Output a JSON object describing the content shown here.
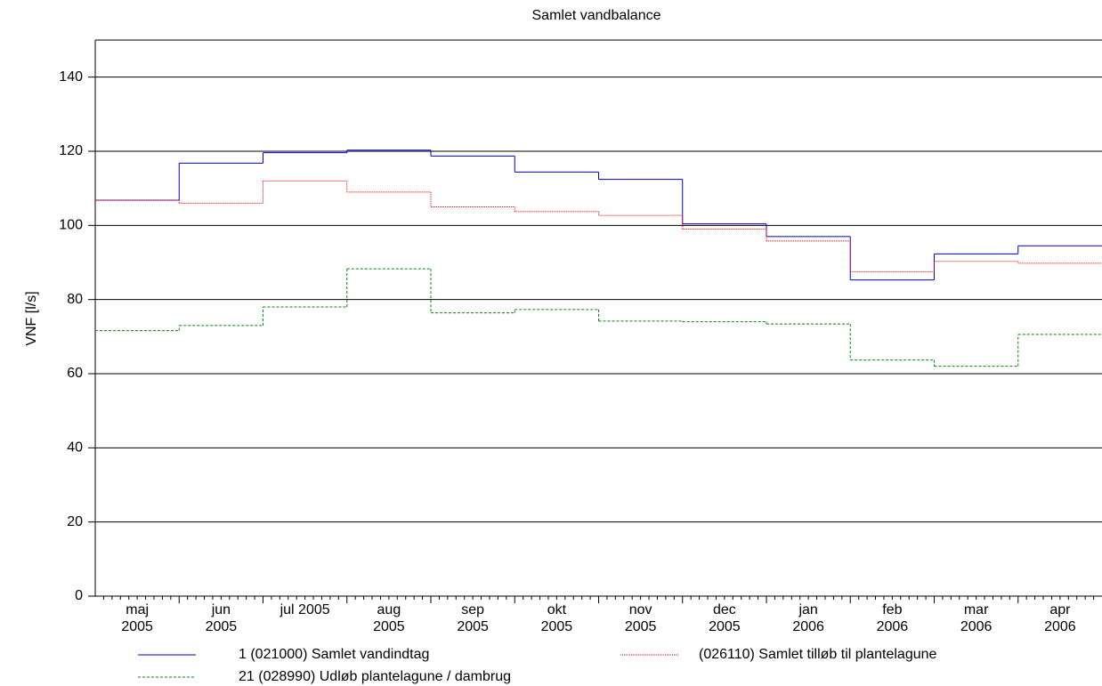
{
  "chart_data": {
    "type": "step-line",
    "title": "Samlet vandbalance",
    "y_label": "VNF [l/s]",
    "categories": [
      "maj 2005",
      "jun 2005",
      "jul 2005",
      "aug 2005",
      "sep 2005",
      "okt 2005",
      "nov 2005",
      "dec 2005",
      "jan 2006",
      "feb 2006",
      "mar 2006",
      "apr 2006"
    ],
    "series": [
      {
        "name": "1 (021000) Samlet vandindtag",
        "color": "#0000cc",
        "style": "solid",
        "values": [
          106.8,
          116.8,
          119.6,
          120.3,
          118.7,
          114.4,
          112.4,
          100.4,
          97,
          85.3,
          92.3,
          94.5
        ]
      },
      {
        "name": "(026110) Samlet tilløb til plantelagune",
        "color": "#ff0000",
        "style": "dotted",
        "values": [
          106.8,
          106,
          112,
          109,
          105,
          103.7,
          102.7,
          99,
          95.8,
          87.5,
          90.3,
          89.8
        ]
      },
      {
        "name": "21 (028990) Udløb plantelagune / dambrug",
        "color": "#008800",
        "style": "dashed",
        "values": [
          71.6,
          73,
          78,
          88.3,
          76.4,
          77.3,
          74.2,
          74,
          73.4,
          63.7,
          62,
          70.6
        ]
      }
    ],
    "ylim": [
      0,
      150
    ],
    "yticks": [
      0,
      20,
      40,
      60,
      80,
      100,
      120,
      140
    ],
    "grid": true
  }
}
